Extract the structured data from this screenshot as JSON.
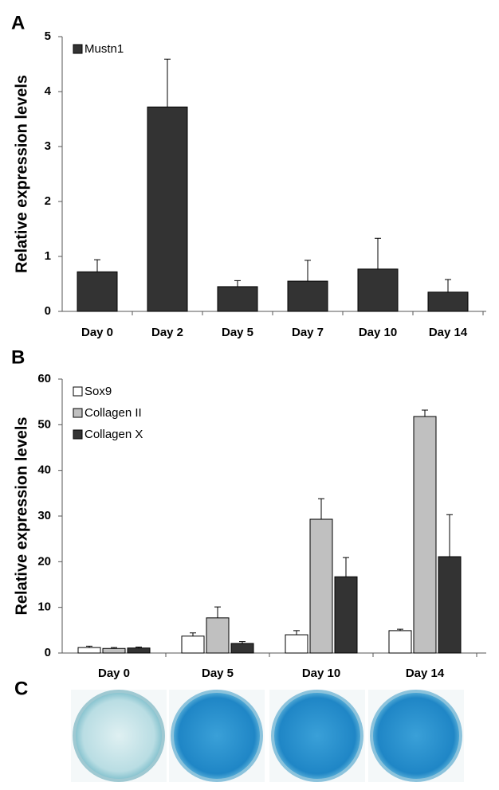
{
  "panel_labels": [
    "A",
    "B",
    "C"
  ],
  "chart_data": [
    {
      "type": "bar",
      "y_label": "Relative expression levels",
      "categories": [
        "Day 0",
        "Day 2",
        "Day 5",
        "Day 7",
        "Day 10",
        "Day 14"
      ],
      "series": [
        {
          "name": "Mustn1",
          "color": "#333333",
          "values": [
            0.72,
            3.72,
            0.45,
            0.55,
            0.77,
            0.35
          ],
          "errors": [
            0.22,
            0.87,
            0.11,
            0.38,
            0.56,
            0.23
          ]
        }
      ],
      "ylim": [
        0,
        5
      ],
      "yticks": [
        0,
        1,
        2,
        3,
        4,
        5
      ],
      "grid": false,
      "legend": "upper left"
    },
    {
      "type": "bar",
      "y_label": "Relative expression levels",
      "categories": [
        "Day 0",
        "Day 5",
        "Day 10",
        "Day 14"
      ],
      "series": [
        {
          "name": "Sox9",
          "color": "#ffffff",
          "values": [
            1.2,
            3.7,
            4.0,
            4.9
          ],
          "errors": [
            0.3,
            0.7,
            0.9,
            0.3
          ]
        },
        {
          "name": "Collagen II",
          "color": "#c0c0c0",
          "values": [
            1.0,
            7.7,
            29.3,
            51.8
          ],
          "errors": [
            0.2,
            2.4,
            4.5,
            1.4
          ]
        },
        {
          "name": "Collagen X",
          "color": "#333333",
          "values": [
            1.1,
            2.1,
            16.7,
            21.1
          ],
          "errors": [
            0.2,
            0.4,
            4.2,
            9.2
          ]
        }
      ],
      "ylim": [
        0,
        60
      ],
      "yticks": [
        0,
        10,
        20,
        30,
        40,
        50,
        60
      ],
      "grid": false,
      "legend": "upper left"
    }
  ]
}
